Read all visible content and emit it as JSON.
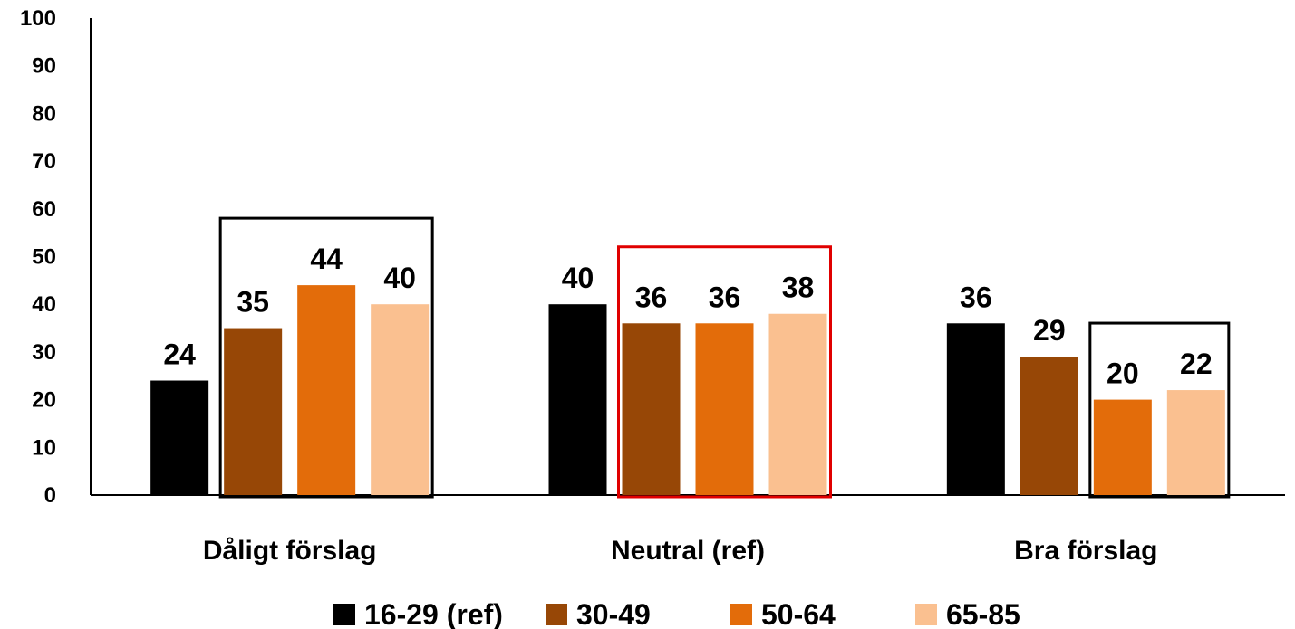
{
  "chart_data": {
    "type": "bar",
    "categories": [
      "Dåligt förslag",
      "Neutral (ref)",
      "Bra förslag"
    ],
    "series": [
      {
        "name": "16-29 (ref)",
        "color": "#000000",
        "values": [
          24,
          40,
          36
        ]
      },
      {
        "name": "30-49",
        "color": "#974706",
        "values": [
          35,
          36,
          29
        ]
      },
      {
        "name": "50-64",
        "color": "#E36C0A",
        "values": [
          44,
          36,
          20
        ]
      },
      {
        "name": "65-85",
        "color": "#FAC090",
        "values": [
          40,
          38,
          22
        ]
      }
    ],
    "data_labels": [
      [
        "24",
        "40",
        "36"
      ],
      [
        "35",
        "36",
        "29"
      ],
      [
        "44",
        "36",
        "20"
      ],
      [
        "40",
        "38",
        "22"
      ]
    ],
    "yticks": [
      "0",
      "10",
      "20",
      "30",
      "40",
      "50",
      "60",
      "70",
      "80",
      "90",
      "100"
    ],
    "ylim": [
      0,
      100
    ],
    "grid": false,
    "legend_position": "bottom",
    "highlight_boxes": [
      {
        "category": "Dåligt förslag",
        "series": [
          "30-49",
          "50-64",
          "65-85"
        ],
        "color": "#000000"
      },
      {
        "category": "Neutral (ref)",
        "series": [
          "30-49",
          "50-64",
          "65-85"
        ],
        "color": "#E00000"
      },
      {
        "category": "Bra förslag",
        "series": [
          "50-64",
          "65-85"
        ],
        "color": "#000000"
      }
    ]
  }
}
